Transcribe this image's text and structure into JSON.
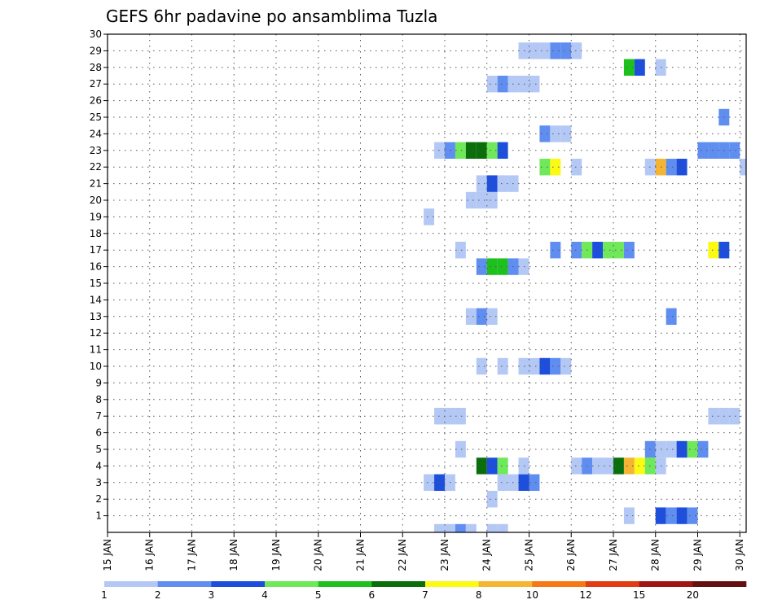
{
  "chart_data": {
    "type": "heatmap",
    "title": "GEFS 6hr padavine po ansamblima Tuzla",
    "x_tick_labels": [
      "15 JAN",
      "16 JAN",
      "17 JAN",
      "18 JAN",
      "19 JAN",
      "20 JAN",
      "21 JAN",
      "22 JAN",
      "23 JAN",
      "24 JAN",
      "25 JAN",
      "26 JAN",
      "27 JAN",
      "28 JAN",
      "29 JAN",
      "30 JAN"
    ],
    "x_range": [
      15,
      30.15
    ],
    "y_tick_labels": [
      "1",
      "2",
      "3",
      "4",
      "5",
      "6",
      "7",
      "8",
      "9",
      "10",
      "11",
      "12",
      "13",
      "14",
      "15",
      "16",
      "17",
      "18",
      "19",
      "20",
      "21",
      "22",
      "23",
      "24",
      "25",
      "26",
      "27",
      "28",
      "29",
      "30"
    ],
    "y_range": [
      0,
      30
    ],
    "grid": true,
    "color_scale": {
      "bounds": [
        "1",
        "2",
        "3",
        "4",
        "5",
        "6",
        "7",
        "8",
        "10",
        "12",
        "15",
        "20"
      ],
      "colors": [
        "#b4c8f5",
        "#5f8ef0",
        "#1e4fdc",
        "#6fe85a",
        "#1ec01e",
        "#0a6e0a",
        "#fafa14",
        "#f5b432",
        "#f57814",
        "#e13c14",
        "#a01414",
        "#641010"
      ]
    },
    "cells": [
      {
        "member": 0,
        "day": 22.75,
        "level": 1
      },
      {
        "member": 0,
        "day": 23.0,
        "level": 1
      },
      {
        "member": 0,
        "day": 23.25,
        "level": 2
      },
      {
        "member": 0,
        "day": 23.5,
        "level": 1
      },
      {
        "member": 0,
        "day": 24.0,
        "level": 1
      },
      {
        "member": 0,
        "day": 24.25,
        "level": 1
      },
      {
        "member": 1,
        "day": 27.25,
        "level": 1
      },
      {
        "member": 1,
        "day": 28.0,
        "level": 3
      },
      {
        "member": 1,
        "day": 28.25,
        "level": 2
      },
      {
        "member": 1,
        "day": 28.5,
        "level": 3
      },
      {
        "member": 1,
        "day": 28.75,
        "level": 2
      },
      {
        "member": 2,
        "day": 24.0,
        "level": 1
      },
      {
        "member": 3,
        "day": 22.5,
        "level": 1
      },
      {
        "member": 3,
        "day": 22.75,
        "level": 3
      },
      {
        "member": 3,
        "day": 23.0,
        "level": 1
      },
      {
        "member": 3,
        "day": 24.25,
        "level": 1
      },
      {
        "member": 3,
        "day": 24.5,
        "level": 1
      },
      {
        "member": 3,
        "day": 24.75,
        "level": 3
      },
      {
        "member": 3,
        "day": 25.0,
        "level": 2
      },
      {
        "member": 4,
        "day": 23.75,
        "level": 6
      },
      {
        "member": 4,
        "day": 24.0,
        "level": 3
      },
      {
        "member": 4,
        "day": 24.25,
        "level": 4
      },
      {
        "member": 4,
        "day": 24.75,
        "level": 1
      },
      {
        "member": 4,
        "day": 26.0,
        "level": 1
      },
      {
        "member": 4,
        "day": 26.25,
        "level": 2
      },
      {
        "member": 4,
        "day": 26.5,
        "level": 1
      },
      {
        "member": 4,
        "day": 26.75,
        "level": 1
      },
      {
        "member": 4,
        "day": 27.0,
        "level": 6
      },
      {
        "member": 4,
        "day": 27.25,
        "level": 8
      },
      {
        "member": 4,
        "day": 27.5,
        "level": 7
      },
      {
        "member": 4,
        "day": 27.75,
        "level": 4
      },
      {
        "member": 4,
        "day": 28.0,
        "level": 1
      },
      {
        "member": 5,
        "day": 23.25,
        "level": 1
      },
      {
        "member": 5,
        "day": 27.75,
        "level": 2
      },
      {
        "member": 5,
        "day": 28.0,
        "level": 1
      },
      {
        "member": 5,
        "day": 28.25,
        "level": 1
      },
      {
        "member": 5,
        "day": 28.5,
        "level": 3
      },
      {
        "member": 5,
        "day": 28.75,
        "level": 4
      },
      {
        "member": 5,
        "day": 29.0,
        "level": 2
      },
      {
        "member": 7,
        "day": 22.75,
        "level": 1
      },
      {
        "member": 7,
        "day": 23.0,
        "level": 1
      },
      {
        "member": 7,
        "day": 23.25,
        "level": 1
      },
      {
        "member": 7,
        "day": 29.25,
        "level": 1
      },
      {
        "member": 7,
        "day": 29.5,
        "level": 1
      },
      {
        "member": 7,
        "day": 29.75,
        "level": 1
      },
      {
        "member": 10,
        "day": 23.75,
        "level": 1
      },
      {
        "member": 10,
        "day": 24.25,
        "level": 1
      },
      {
        "member": 10,
        "day": 24.75,
        "level": 1
      },
      {
        "member": 10,
        "day": 25.0,
        "level": 1
      },
      {
        "member": 10,
        "day": 25.25,
        "level": 3
      },
      {
        "member": 10,
        "day": 25.5,
        "level": 2
      },
      {
        "member": 10,
        "day": 25.75,
        "level": 1
      },
      {
        "member": 13,
        "day": 23.5,
        "level": 1
      },
      {
        "member": 13,
        "day": 23.75,
        "level": 2
      },
      {
        "member": 13,
        "day": 24.0,
        "level": 1
      },
      {
        "member": 13,
        "day": 28.25,
        "level": 2
      },
      {
        "member": 16,
        "day": 23.75,
        "level": 2
      },
      {
        "member": 16,
        "day": 24.0,
        "level": 5
      },
      {
        "member": 16,
        "day": 24.25,
        "level": 5
      },
      {
        "member": 16,
        "day": 24.5,
        "level": 2
      },
      {
        "member": 16,
        "day": 24.75,
        "level": 1
      },
      {
        "member": 17,
        "day": 23.25,
        "level": 1
      },
      {
        "member": 17,
        "day": 25.5,
        "level": 2
      },
      {
        "member": 17,
        "day": 26.0,
        "level": 2
      },
      {
        "member": 17,
        "day": 26.25,
        "level": 4
      },
      {
        "member": 17,
        "day": 26.5,
        "level": 3
      },
      {
        "member": 17,
        "day": 26.75,
        "level": 4
      },
      {
        "member": 17,
        "day": 27.0,
        "level": 4
      },
      {
        "member": 17,
        "day": 27.25,
        "level": 2
      },
      {
        "member": 17,
        "day": 29.25,
        "level": 7
      },
      {
        "member": 17,
        "day": 29.5,
        "level": 3
      },
      {
        "member": 19,
        "day": 22.5,
        "level": 1
      },
      {
        "member": 20,
        "day": 23.5,
        "level": 1
      },
      {
        "member": 20,
        "day": 23.75,
        "level": 1
      },
      {
        "member": 20,
        "day": 24.0,
        "level": 1
      },
      {
        "member": 21,
        "day": 23.75,
        "level": 1
      },
      {
        "member": 21,
        "day": 24.0,
        "level": 3
      },
      {
        "member": 21,
        "day": 24.25,
        "level": 1
      },
      {
        "member": 21,
        "day": 24.5,
        "level": 1
      },
      {
        "member": 22,
        "day": 25.25,
        "level": 4
      },
      {
        "member": 22,
        "day": 25.5,
        "level": 7
      },
      {
        "member": 22,
        "day": 26.0,
        "level": 1
      },
      {
        "member": 22,
        "day": 27.75,
        "level": 1
      },
      {
        "member": 22,
        "day": 28.0,
        "level": 8
      },
      {
        "member": 22,
        "day": 28.25,
        "level": 2
      },
      {
        "member": 22,
        "day": 28.5,
        "level": 3
      },
      {
        "member": 22,
        "day": 30.0,
        "level": 1
      },
      {
        "member": 23,
        "day": 22.75,
        "level": 1
      },
      {
        "member": 23,
        "day": 23.0,
        "level": 2
      },
      {
        "member": 23,
        "day": 23.25,
        "level": 4
      },
      {
        "member": 23,
        "day": 23.5,
        "level": 6
      },
      {
        "member": 23,
        "day": 23.75,
        "level": 6
      },
      {
        "member": 23,
        "day": 24.0,
        "level": 4
      },
      {
        "member": 23,
        "day": 24.25,
        "level": 3
      },
      {
        "member": 23,
        "day": 29.0,
        "level": 2
      },
      {
        "member": 23,
        "day": 29.25,
        "level": 2
      },
      {
        "member": 23,
        "day": 29.5,
        "level": 2
      },
      {
        "member": 23,
        "day": 29.75,
        "level": 2
      },
      {
        "member": 24,
        "day": 25.25,
        "level": 2
      },
      {
        "member": 24,
        "day": 25.5,
        "level": 1
      },
      {
        "member": 24,
        "day": 25.75,
        "level": 1
      },
      {
        "member": 25,
        "day": 29.5,
        "level": 2
      },
      {
        "member": 27,
        "day": 24.0,
        "level": 1
      },
      {
        "member": 27,
        "day": 24.25,
        "level": 2
      },
      {
        "member": 27,
        "day": 24.5,
        "level": 1
      },
      {
        "member": 27,
        "day": 24.75,
        "level": 1
      },
      {
        "member": 27,
        "day": 25.0,
        "level": 1
      },
      {
        "member": 28,
        "day": 27.25,
        "level": 5
      },
      {
        "member": 28,
        "day": 27.5,
        "level": 3
      },
      {
        "member": 28,
        "day": 28.0,
        "level": 1
      },
      {
        "member": 29,
        "day": 24.75,
        "level": 1
      },
      {
        "member": 29,
        "day": 25.0,
        "level": 1
      },
      {
        "member": 29,
        "day": 25.25,
        "level": 1
      },
      {
        "member": 29,
        "day": 25.5,
        "level": 2
      },
      {
        "member": 29,
        "day": 25.75,
        "level": 2
      },
      {
        "member": 29,
        "day": 26.0,
        "level": 1
      }
    ]
  }
}
